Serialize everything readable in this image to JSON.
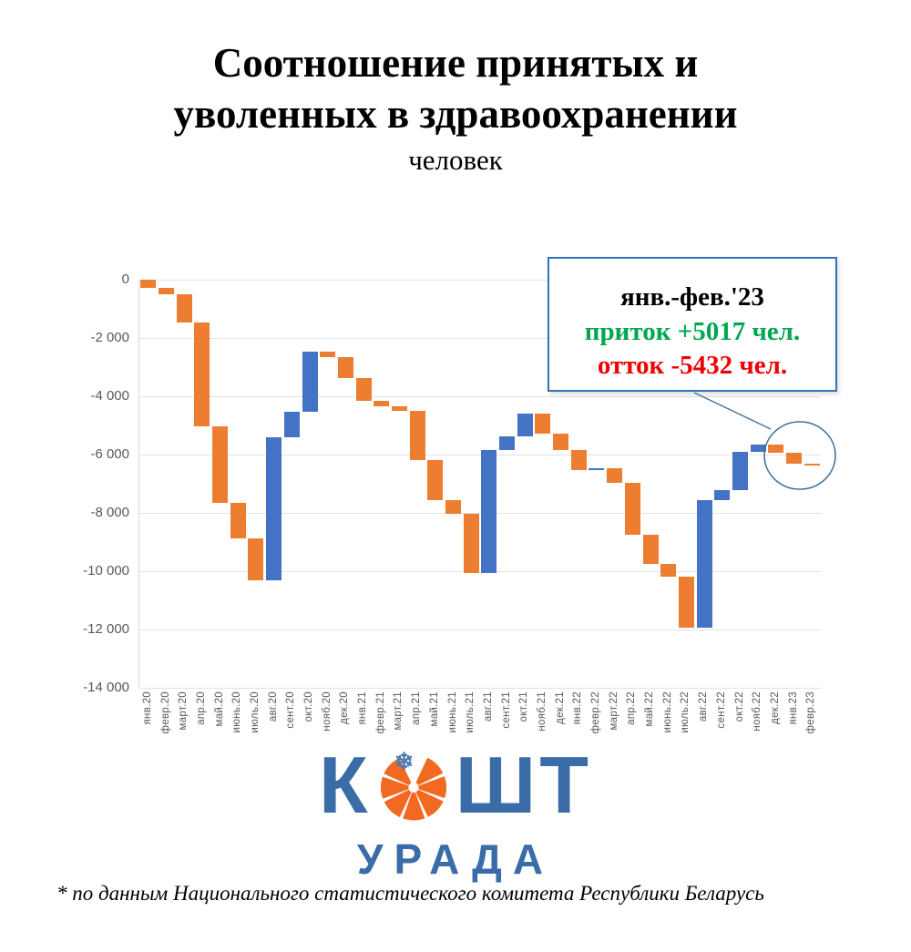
{
  "title": {
    "line1": "Соотношение принятых и",
    "line2": "уволенных в здравоохранении",
    "subtitle": "человек"
  },
  "annotation": {
    "period": "янв.-фев.'23",
    "inflow": "приток +5017 чел.",
    "outflow": "отток -5432 чел.",
    "period_color": "#000000",
    "inflow_color": "#00A650",
    "outflow_color": "#EE0000",
    "box_border_color": "#2E75B6",
    "callout_stroke_color": "#41719C"
  },
  "footnote": "* по данным Национального статистического комитета Республики Беларусь",
  "logo": {
    "top_left": "К",
    "top_right": "ШТ",
    "bottom": "УРАДА",
    "blue": "#3A6CA8",
    "orange": "#F26A21"
  },
  "chart_data": {
    "type": "bar",
    "subtype": "waterfall",
    "title": "Соотношение принятых и уволенных в здравоохранении",
    "ylabel": "человек",
    "categories": [
      "янв.20",
      "февр.20",
      "март.20",
      "апр.20",
      "май.20",
      "июнь.20",
      "июль.20",
      "авг.20",
      "сент.20",
      "окт.20",
      "нояб.20",
      "дек.20",
      "янв.21",
      "февр.21",
      "март.21",
      "апр.21",
      "май.21",
      "июнь.21",
      "июль.21",
      "авг.21",
      "сент.21",
      "окт.21",
      "нояб.21",
      "дек.21",
      "янв.22",
      "февр.22",
      "март.22",
      "апр.22",
      "май.22",
      "июнь.22",
      "июль.22",
      "авг.22",
      "сент.22",
      "окт.22",
      "нояб.22",
      "дек.22",
      "янв.23",
      "февр.23"
    ],
    "changes": [
      -280,
      -210,
      -990,
      -3540,
      -2640,
      -1220,
      -1430,
      4910,
      870,
      2050,
      -170,
      -720,
      -800,
      -175,
      -165,
      -1670,
      -1370,
      -470,
      -2030,
      4200,
      490,
      780,
      -710,
      -560,
      -690,
      60,
      -500,
      -1770,
      -990,
      -440,
      -1750,
      4360,
      360,
      1300,
      250,
      -290,
      -370,
      -45
    ],
    "cumulative": [
      -280,
      -490,
      -1480,
      -5020,
      -7660,
      -8880,
      -10310,
      -5400,
      -4530,
      -2480,
      -2650,
      -3370,
      -4170,
      -4345,
      -4510,
      -6180,
      -7550,
      -8020,
      -10050,
      -5850,
      -5360,
      -4580,
      -5290,
      -5850,
      -6540,
      -6480,
      -6980,
      -8750,
      -9740,
      -10180,
      -11930,
      -7570,
      -7210,
      -5910,
      -5660,
      -5950,
      -6320,
      -6365
    ],
    "ylim": [
      -14000,
      0
    ],
    "ytick_step": 2000,
    "ytick_labels": [
      "0",
      "-2 000",
      "-4 000",
      "-6 000",
      "-8 000",
      "-10 000",
      "-12 000",
      "-14 000"
    ],
    "grid": true,
    "legend": "none",
    "positive_color": "#4472C4",
    "negative_color": "#ED7D31",
    "circled_months": [
      "дек.22",
      "янв.23",
      "февр.23"
    ]
  }
}
